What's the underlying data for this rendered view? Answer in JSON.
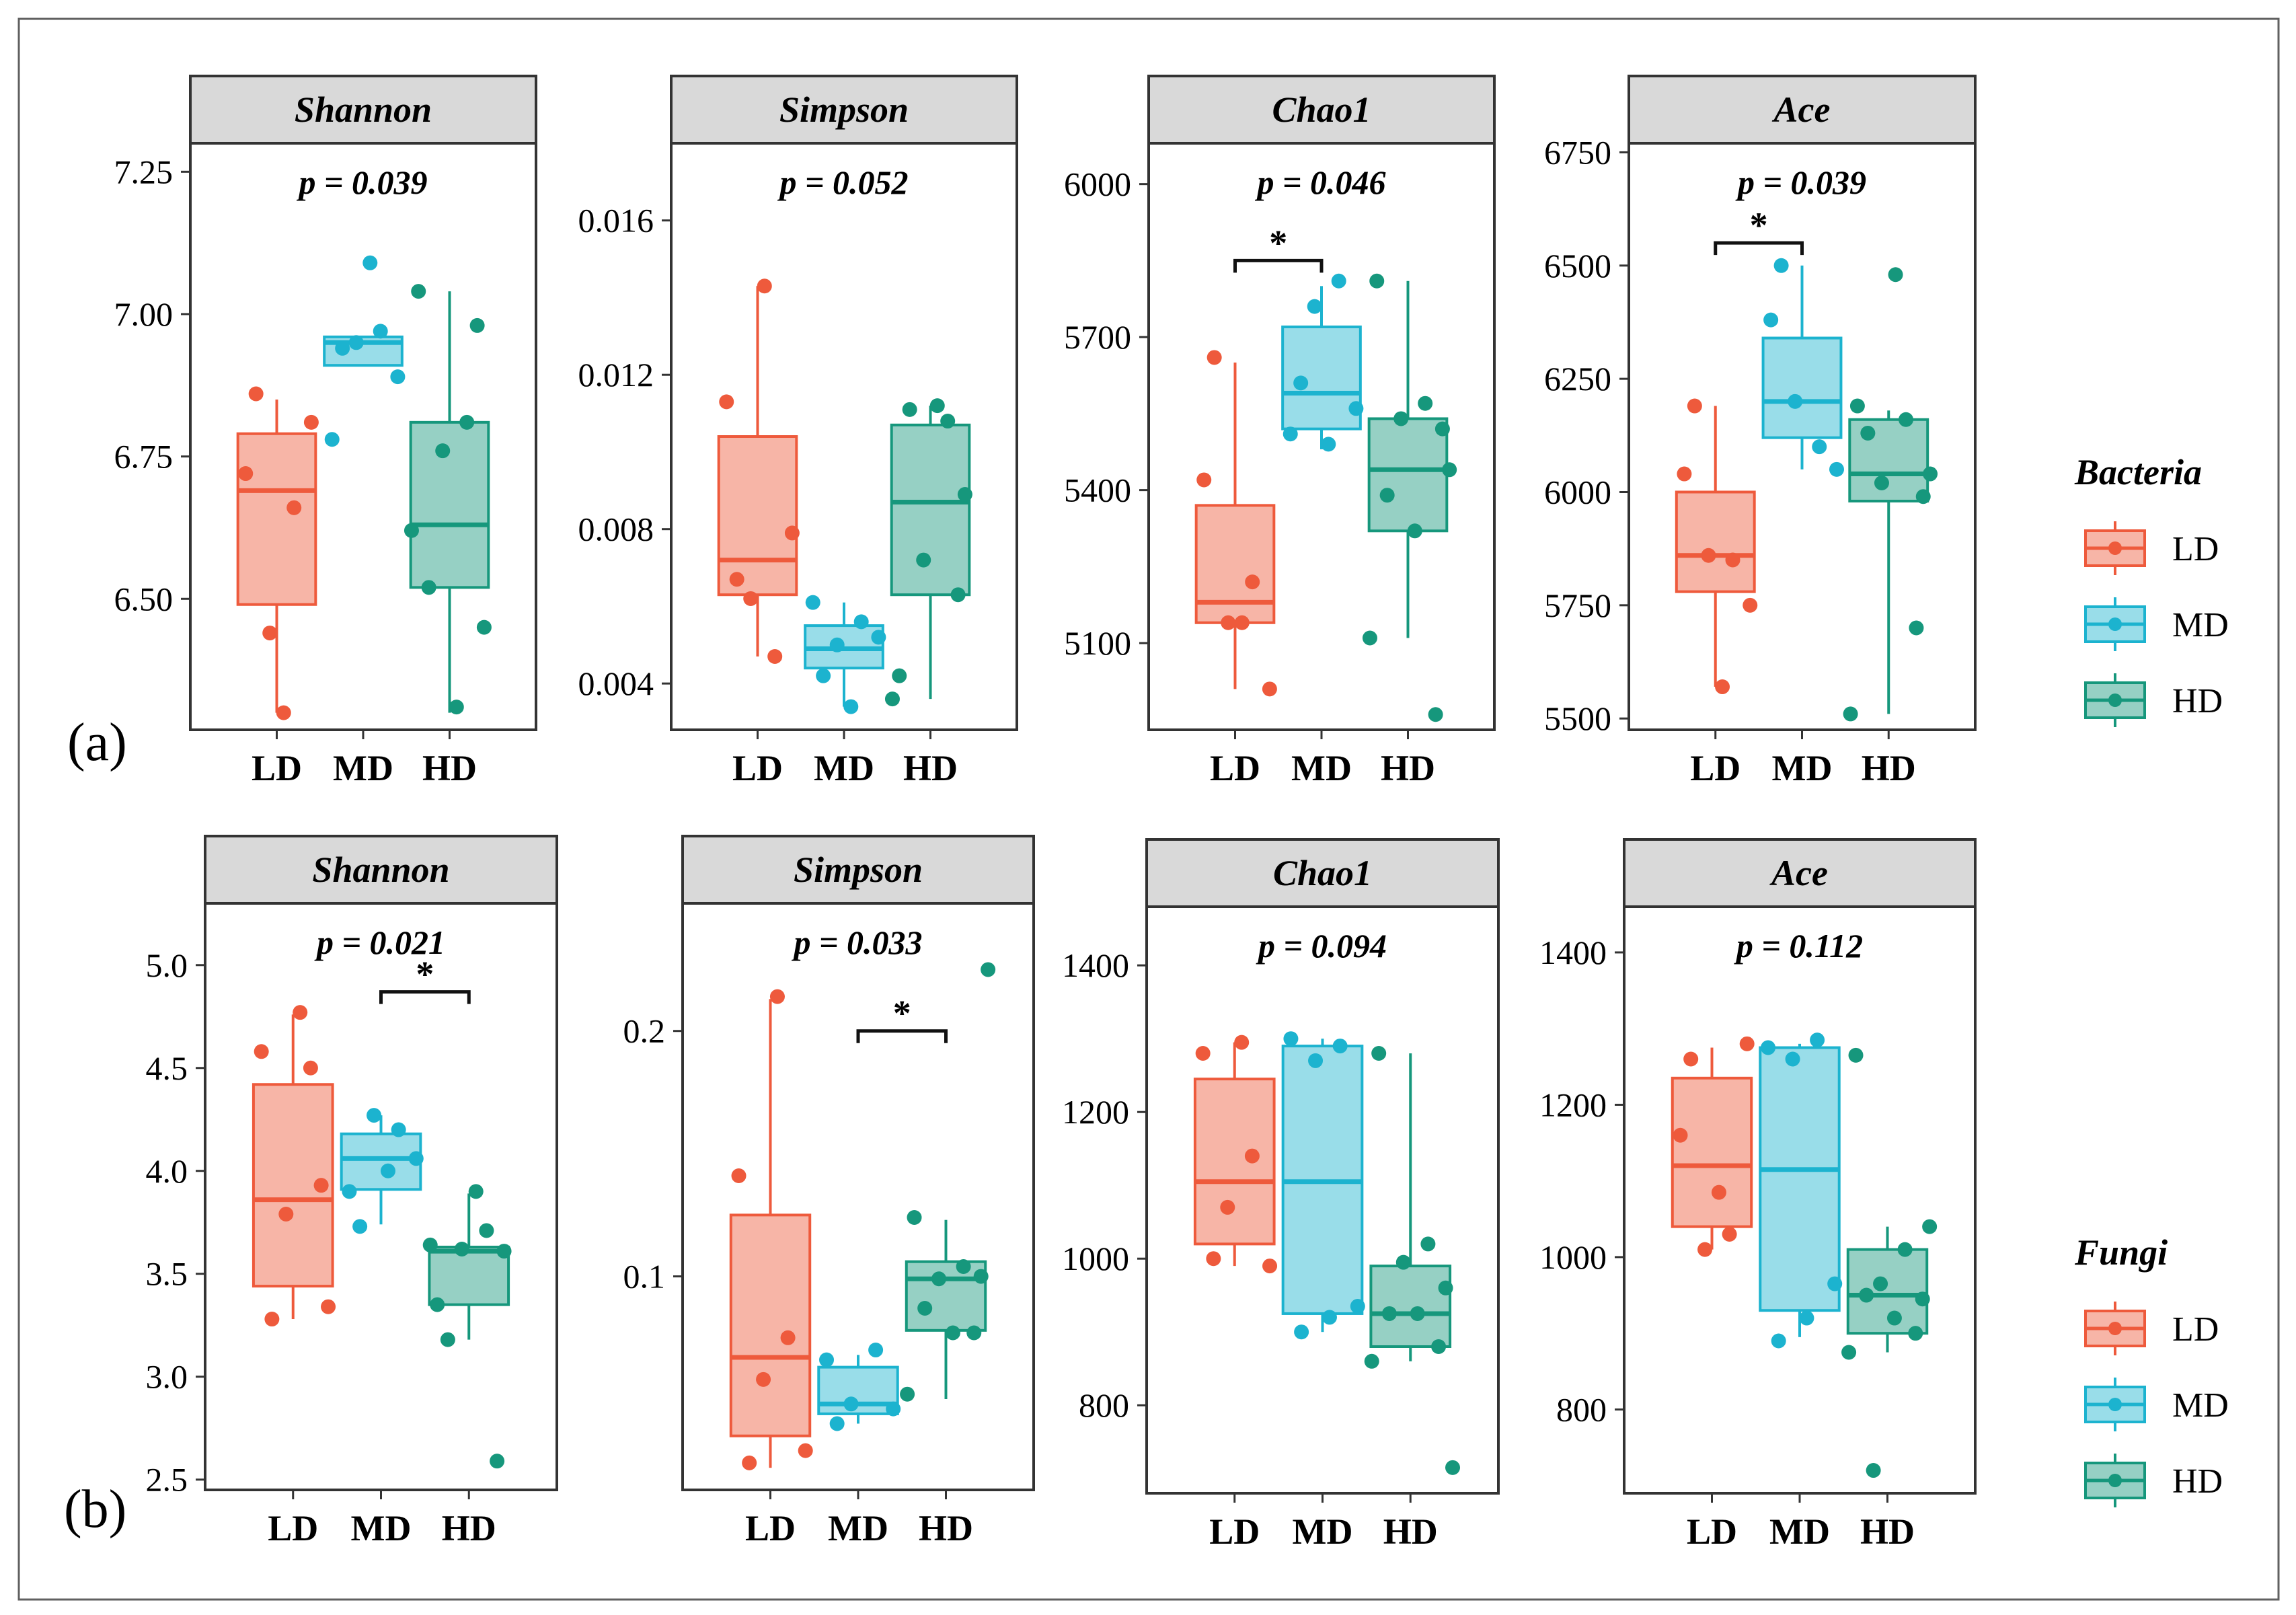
{
  "colors": {
    "LD": "#ee5a3c",
    "MD": "#1cb3cf",
    "HD": "#16977c"
  },
  "labels": {
    "panel_a": "(a)",
    "panel_b": "(b)"
  },
  "legends": [
    {
      "title": "Bacteria",
      "items": [
        "LD",
        "MD",
        "HD"
      ]
    },
    {
      "title": "Fungi",
      "items": [
        "LD",
        "MD",
        "HD"
      ]
    }
  ],
  "chart_data": [
    {
      "type": "box",
      "title": "Shannon",
      "pvalue": "p = 0.039",
      "categories": [
        "LD",
        "MD",
        "HD"
      ],
      "ylim": [
        6.27,
        7.3
      ],
      "yticks": [
        6.5,
        6.75,
        7.0,
        7.25
      ],
      "ytick_labels": [
        "6.50",
        "6.75",
        "7.00",
        "7.25"
      ],
      "boxes": [
        {
          "q1": 6.49,
          "median": 6.69,
          "q3": 6.79,
          "wlo": 6.3,
          "whi": 6.85
        },
        {
          "q1": 6.91,
          "median": 6.95,
          "q3": 6.96,
          "wlo": 6.91,
          "whi": 6.96
        },
        {
          "q1": 6.52,
          "median": 6.63,
          "q3": 6.81,
          "wlo": 6.3,
          "whi": 7.04
        }
      ],
      "points": [
        [
          6.72,
          6.66,
          6.44,
          6.81,
          6.86,
          6.3
        ],
        [
          6.78,
          6.97,
          6.95,
          6.89,
          6.94,
          7.09
        ],
        [
          7.04,
          6.81,
          6.76,
          6.45,
          6.52,
          6.31,
          6.98,
          6.62
        ]
      ],
      "sig": null
    },
    {
      "type": "box",
      "title": "Simpson",
      "pvalue": "p = 0.052",
      "categories": [
        "LD",
        "MD",
        "HD"
      ],
      "ylim": [
        0.0028,
        0.018
      ],
      "yticks": [
        0.004,
        0.008,
        0.012,
        0.016
      ],
      "ytick_labels": [
        "0.004",
        "0.008",
        "0.012",
        "0.016"
      ],
      "boxes": [
        {
          "q1": 0.0063,
          "median": 0.0072,
          "q3": 0.0104,
          "wlo": 0.0047,
          "whi": 0.0143
        },
        {
          "q1": 0.0044,
          "median": 0.0049,
          "q3": 0.0055,
          "wlo": 0.0034,
          "whi": 0.0061
        },
        {
          "q1": 0.0063,
          "median": 0.0087,
          "q3": 0.0107,
          "wlo": 0.0036,
          "whi": 0.0112
        }
      ],
      "points": [
        [
          0.0113,
          0.0047,
          0.0062,
          0.0079,
          0.0067,
          0.0143
        ],
        [
          0.0061,
          0.0056,
          0.005,
          0.0052,
          0.0042,
          0.0034
        ],
        [
          0.0042,
          0.0108,
          0.0072,
          0.0089,
          0.0111,
          0.0112,
          0.0063,
          0.0036
        ]
      ],
      "sig": null
    },
    {
      "type": "box",
      "title": "Chao1",
      "pvalue": "p = 0.046",
      "categories": [
        "LD",
        "MD",
        "HD"
      ],
      "ylim": [
        4930,
        6080
      ],
      "yticks": [
        5100,
        5400,
        5700,
        6000
      ],
      "ytick_labels": [
        "5100",
        "5400",
        "5700",
        "6000"
      ],
      "boxes": [
        {
          "q1": 5140,
          "median": 5180,
          "q3": 5370,
          "wlo": 5010,
          "whi": 5650
        },
        {
          "q1": 5520,
          "median": 5590,
          "q3": 5720,
          "wlo": 5480,
          "whi": 5800
        },
        {
          "q1": 5320,
          "median": 5440,
          "q3": 5540,
          "wlo": 5110,
          "whi": 5810
        }
      ],
      "points": [
        [
          5420,
          5220,
          5140,
          5010,
          5660,
          5140
        ],
        [
          5510,
          5810,
          5760,
          5560,
          5610,
          5490
        ],
        [
          5810,
          5570,
          5540,
          5520,
          5390,
          5320,
          4960,
          5110,
          5440
        ]
      ],
      "sig": {
        "from": 0,
        "to": 1,
        "label": "*",
        "y": 5850
      }
    },
    {
      "type": "box",
      "title": "Ace",
      "pvalue": "p = 0.039",
      "categories": [
        "LD",
        "MD",
        "HD"
      ],
      "ylim": [
        5475,
        6770
      ],
      "yticks": [
        5500,
        5750,
        6000,
        6250,
        6500,
        6750
      ],
      "ytick_labels": [
        "5500",
        "5750",
        "6000",
        "6250",
        "6500",
        "6750"
      ],
      "boxes": [
        {
          "q1": 5780,
          "median": 5860,
          "q3": 6000,
          "wlo": 5570,
          "whi": 6190
        },
        {
          "q1": 6120,
          "median": 6200,
          "q3": 6340,
          "wlo": 6050,
          "whi": 6500
        },
        {
          "q1": 5980,
          "median": 6040,
          "q3": 6160,
          "wlo": 5510,
          "whi": 6180
        }
      ],
      "points": [
        [
          6040,
          5850,
          5860,
          5750,
          6190,
          5570
        ],
        [
          6380,
          6100,
          6200,
          6050,
          6500
        ],
        [
          6190,
          6160,
          6020,
          5990,
          6130,
          6480,
          5700,
          5510,
          6040
        ]
      ],
      "sig": {
        "from": 0,
        "to": 1,
        "label": "*",
        "y": 6550
      }
    },
    {
      "type": "box",
      "title": "Shannon",
      "pvalue": "p = 0.021",
      "categories": [
        "LD",
        "MD",
        "HD"
      ],
      "ylim": [
        2.45,
        5.3
      ],
      "yticks": [
        2.5,
        3.0,
        3.5,
        4.0,
        4.5,
        5.0
      ],
      "ytick_labels": [
        "2.5",
        "3.0",
        "3.5",
        "4.0",
        "4.5",
        "5.0"
      ],
      "boxes": [
        {
          "q1": 3.44,
          "median": 3.86,
          "q3": 4.42,
          "wlo": 3.28,
          "whi": 4.76
        },
        {
          "q1": 3.91,
          "median": 4.06,
          "q3": 4.18,
          "wlo": 3.74,
          "whi": 4.27
        },
        {
          "q1": 3.35,
          "median": 3.61,
          "q3": 3.63,
          "wlo": 3.18,
          "whi": 3.89
        }
      ],
      "points": [
        [
          4.58,
          4.5,
          3.79,
          3.34,
          3.28,
          4.77,
          3.93
        ],
        [
          3.9,
          4.2,
          4.27,
          4.06,
          3.73,
          4.0
        ],
        [
          3.35,
          3.71,
          3.62,
          3.61,
          3.18,
          3.9,
          2.59,
          3.64
        ]
      ],
      "sig": {
        "from": 1,
        "to": 2,
        "label": "*",
        "y": 4.87
      }
    },
    {
      "type": "box",
      "title": "Simpson",
      "pvalue": "p = 0.033",
      "categories": [
        "LD",
        "MD",
        "HD"
      ],
      "ylim": [
        0.013,
        0.252
      ],
      "yticks": [
        0.1,
        0.2
      ],
      "ytick_labels": [
        "0.1",
        "0.2"
      ],
      "boxes": [
        {
          "q1": 0.035,
          "median": 0.067,
          "q3": 0.125,
          "wlo": 0.022,
          "whi": 0.213
        },
        {
          "q1": 0.044,
          "median": 0.048,
          "q3": 0.063,
          "wlo": 0.04,
          "whi": 0.068
        },
        {
          "q1": 0.078,
          "median": 0.099,
          "q3": 0.106,
          "wlo": 0.05,
          "whi": 0.123
        }
      ],
      "points": [
        [
          0.141,
          0.075,
          0.058,
          0.029,
          0.024,
          0.214
        ],
        [
          0.066,
          0.07,
          0.048,
          0.046,
          0.04
        ],
        [
          0.124,
          0.104,
          0.099,
          0.1,
          0.087,
          0.077,
          0.077,
          0.052,
          0.225
        ]
      ],
      "sig": {
        "from": 1,
        "to": 2,
        "label": "*",
        "y": 0.2
      }
    },
    {
      "type": "box",
      "title": "Chao1",
      "pvalue": "p = 0.094",
      "categories": [
        "LD",
        "MD",
        "HD"
      ],
      "ylim": [
        680,
        1480
      ],
      "yticks": [
        800,
        1000,
        1200,
        1400
      ],
      "ytick_labels": [
        "800",
        "1000",
        "1200",
        "1400"
      ],
      "boxes": [
        {
          "q1": 1020,
          "median": 1105,
          "q3": 1245,
          "wlo": 990,
          "whi": 1295
        },
        {
          "q1": 925,
          "median": 1105,
          "q3": 1290,
          "wlo": 900,
          "whi": 1300
        },
        {
          "q1": 880,
          "median": 925,
          "q3": 990,
          "wlo": 860,
          "whi": 1280
        }
      ],
      "points": [
        [
          1280,
          1140,
          1070,
          990,
          1000,
          1295
        ],
        [
          1300,
          1290,
          1270,
          935,
          900,
          920
        ],
        [
          1280,
          1020,
          995,
          960,
          925,
          925,
          880,
          860,
          715
        ]
      ],
      "sig": null
    },
    {
      "type": "box",
      "title": "Ace",
      "pvalue": "p = 0.112",
      "categories": [
        "LD",
        "MD",
        "HD"
      ],
      "ylim": [
        690,
        1460
      ],
      "yticks": [
        800,
        1000,
        1200,
        1400
      ],
      "ytick_labels": [
        "800",
        "1000",
        "1200",
        "1400"
      ],
      "boxes": [
        {
          "q1": 1040,
          "median": 1120,
          "q3": 1235,
          "wlo": 1010,
          "whi": 1275
        },
        {
          "q1": 930,
          "median": 1115,
          "q3": 1275,
          "wlo": 895,
          "whi": 1280
        },
        {
          "q1": 900,
          "median": 950,
          "q3": 1010,
          "wlo": 875,
          "whi": 1040
        }
      ],
      "points": [
        [
          1160,
          1030,
          1010,
          1280,
          1260,
          1085
        ],
        [
          1275,
          1285,
          1260,
          965,
          890,
          920
        ],
        [
          1265,
          1010,
          965,
          945,
          950,
          920,
          900,
          875,
          1040,
          720
        ]
      ],
      "sig": null
    }
  ]
}
